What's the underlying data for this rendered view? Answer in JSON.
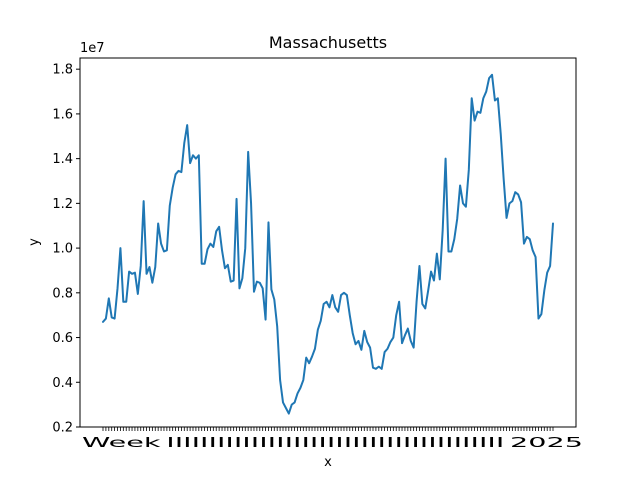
{
  "chart_data": {
    "type": "line",
    "title": "Massachusetts",
    "xlabel": "x",
    "ylabel": "y",
    "y_scale_label": "1e7",
    "color": "#1f77b4",
    "ylim": [
      2000000,
      18500000
    ],
    "y_ticks": [
      2000000,
      4000000,
      6000000,
      8000000,
      10000000,
      12000000,
      14000000,
      16000000,
      18000000
    ],
    "y_tick_labels": [
      "0.2",
      "0.4",
      "0.6",
      "0.8",
      "1.0",
      "1.2",
      "1.4",
      "1.6",
      "1.8"
    ],
    "grid": false,
    "legend": "none",
    "series": [
      {
        "values": [
          6700000,
          6850000,
          7750000,
          6900000,
          6850000,
          8200000,
          10000000,
          7600000,
          7600000,
          8950000,
          8850000,
          8900000,
          7950000,
          9200000,
          12100000,
          8850000,
          9150000,
          8450000,
          9150000,
          11100000,
          10200000,
          9850000,
          9900000,
          11900000,
          12700000,
          13300000,
          13450000,
          13400000,
          14700000,
          15500000,
          13800000,
          14150000,
          14000000,
          14150000,
          9300000,
          9300000,
          9950000,
          10200000,
          10050000,
          10750000,
          10950000,
          9900000,
          9100000,
          9250000,
          8500000,
          8550000,
          12200000,
          8200000,
          8650000,
          10000000,
          14300000,
          12000000,
          8050000,
          8500000,
          8450000,
          8200000,
          6800000,
          11150000,
          8150000,
          7700000,
          6500000,
          4100000,
          3100000,
          2850000,
          2600000,
          3000000,
          3100000,
          3500000,
          3750000,
          4100000,
          5100000,
          4850000,
          5150000,
          5500000,
          6350000,
          6750000,
          7500000,
          7600000,
          7350000,
          7900000,
          7350000,
          7150000,
          7900000,
          8000000,
          7900000,
          7000000,
          6200000,
          5700000,
          5850000,
          5450000,
          6300000,
          5800000,
          5550000,
          4650000,
          4600000,
          4700000,
          4600000,
          5350000,
          5500000,
          5800000,
          6000000,
          7000000,
          7600000,
          5750000,
          6100000,
          6400000,
          5850000,
          5550000,
          7600000,
          9200000,
          7500000,
          7300000,
          8100000,
          8950000,
          8550000,
          9750000,
          8600000,
          10800000,
          14000000,
          9850000,
          9850000,
          10400000,
          11300000,
          12800000,
          12000000,
          11850000,
          13500000,
          16700000,
          15700000,
          16100000,
          16050000,
          16700000,
          17000000,
          17600000,
          17750000,
          16600000,
          16700000,
          15100000,
          13100000,
          11350000,
          12000000,
          12100000,
          12500000,
          12400000,
          12050000,
          10200000,
          10500000,
          10400000,
          9900000,
          9600000,
          6850000,
          7050000,
          8100000,
          8900000,
          9200000,
          11100000
        ]
      }
    ],
    "x_tick_labels_visible": [
      "Week",
      "2025"
    ]
  }
}
